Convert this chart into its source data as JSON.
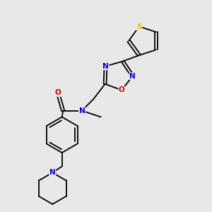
{
  "bg_color": "#e8e8e8",
  "bond_color": "#000000",
  "bond_width": 1.3,
  "atom_colors": {
    "S": "#cccc00",
    "N": "#0000cc",
    "O": "#cc0000",
    "C": "#000000"
  },
  "font_size": 7.5,
  "fig_size": [
    3.0,
    3.0
  ],
  "dpi": 100,
  "xlim": [
    0,
    10
  ],
  "ylim": [
    0,
    10
  ]
}
